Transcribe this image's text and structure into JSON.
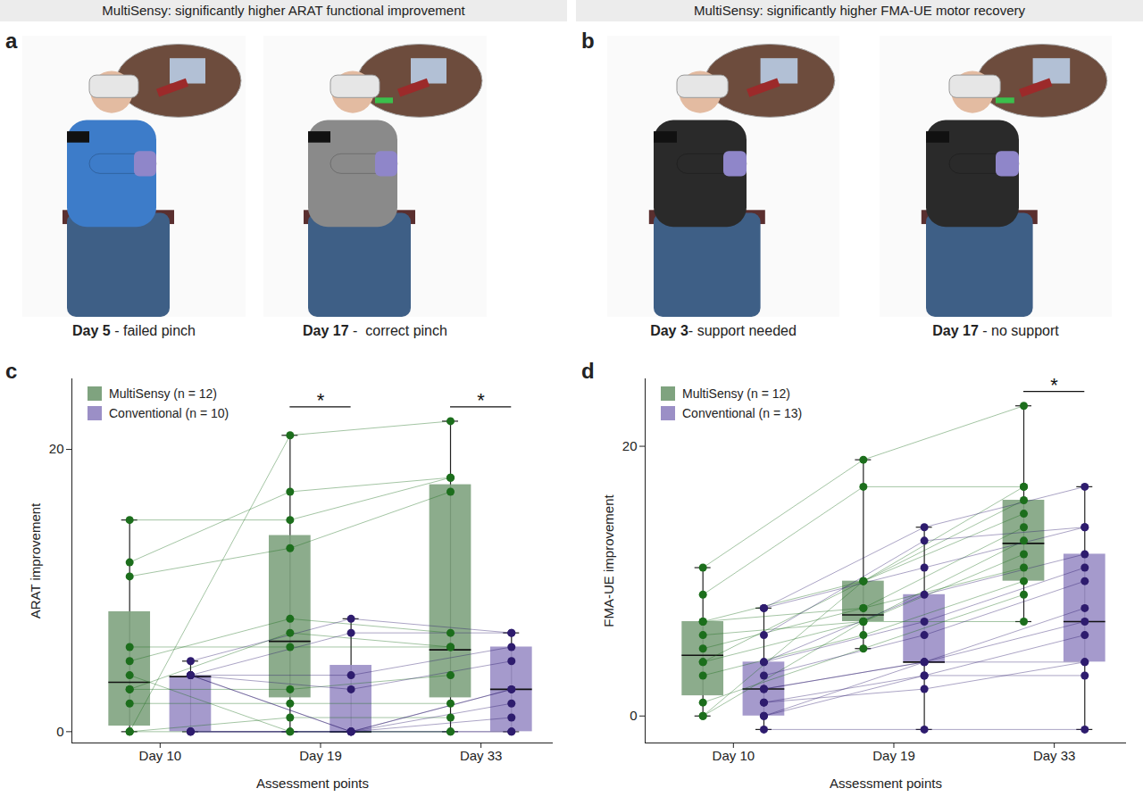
{
  "headers": [
    "MultiSensy: significantly higher ARAT functional improvement",
    "MultiSensy: significantly higher FMA-UE motor recovery"
  ],
  "photo_panels": [
    {
      "panel": "a",
      "frames": [
        {
          "day": "Day 5",
          "text": " - failed pinch"
        },
        {
          "day": "Day 17",
          "text": " -  correct pinch"
        }
      ]
    },
    {
      "panel": "b",
      "frames": [
        {
          "day": "Day 3",
          "text": "- support needed"
        },
        {
          "day": "Day 17",
          "text": " - no support"
        }
      ]
    }
  ],
  "chart_data": [
    {
      "type": "box",
      "panel": "c",
      "x_label": "Assessment points",
      "y_label": "ARAT improvement",
      "categories": [
        "Day 10",
        "Day 19",
        "Day 33"
      ],
      "ylim": [
        -0.8,
        25
      ],
      "yticks": [
        0,
        20
      ],
      "legend": "top-left",
      "series": [
        {
          "name": "MultiSensy (n = 12)",
          "color": "#7fa37f",
          "marker": "circle",
          "subjects": [
            [
              15,
              15,
              18
            ],
            [
              12,
              17,
              18
            ],
            [
              11,
              13,
              17
            ],
            [
              6,
              6,
              6
            ],
            [
              5,
              8,
              7
            ],
            [
              3,
              7,
              6
            ],
            [
              3,
              3,
              4
            ],
            [
              2,
              2,
              2
            ],
            [
              0,
              21,
              22
            ],
            [
              0,
              1,
              1
            ],
            [
              0,
              0,
              0
            ],
            [
              4,
              0,
              0
            ]
          ],
          "boxes": [
            {
              "low": 0,
              "q1": 0.4,
              "median": 3.5,
              "q3": 8.5,
              "high": 15
            },
            {
              "low": 0,
              "q1": 2.4,
              "median": 6.4,
              "q3": 13.9,
              "high": 21
            },
            {
              "low": 0,
              "q1": 2.4,
              "median": 5.8,
              "q3": 17.5,
              "high": 22
            }
          ]
        },
        {
          "name": "Conventional (n = 10)",
          "color": "#9b8fc6",
          "marker": "circle",
          "subjects": [
            [
              5,
              8,
              7
            ],
            [
              4,
              7,
              7
            ],
            [
              4,
              4,
              6
            ],
            [
              4,
              3,
              5
            ],
            [
              4,
              0,
              3
            ],
            [
              4,
              0,
              3
            ],
            [
              0,
              0,
              2
            ],
            [
              0,
              0,
              1
            ],
            [
              0,
              0,
              0
            ],
            [
              0,
              0,
              0
            ]
          ],
          "boxes": [
            {
              "low": 0,
              "q1": 0,
              "median": 3.9,
              "q3": 3.9,
              "high": 5
            },
            {
              "low": 0,
              "q1": 0,
              "median": 0,
              "q3": 4.7,
              "high": 8
            },
            {
              "low": 0,
              "q1": 0,
              "median": 3,
              "q3": 6,
              "high": 7
            }
          ]
        }
      ],
      "significance": [
        {
          "category": "Day 19",
          "label": "*"
        },
        {
          "category": "Day 33",
          "label": "*"
        }
      ]
    },
    {
      "type": "box",
      "panel": "d",
      "x_label": "Assessment points",
      "y_label": "FMA-UE improvement",
      "categories": [
        "Day 10",
        "Day 19",
        "Day 33"
      ],
      "ylim": [
        -2,
        25
      ],
      "yticks": [
        0,
        20
      ],
      "legend": "top-left",
      "series": [
        {
          "name": "MultiSensy (n = 12)",
          "color": "#7fa37f",
          "marker": "circle",
          "subjects": [
            [
              11,
              19,
              23
            ],
            [
              9,
              17,
              17
            ],
            [
              7,
              10,
              15
            ],
            [
              7,
              8,
              14
            ],
            [
              6,
              7,
              12
            ],
            [
              5,
              8,
              11
            ],
            [
              4,
              7,
              13
            ],
            [
              4,
              10,
              16
            ],
            [
              3,
              6,
              10
            ],
            [
              1,
              5,
              9
            ],
            [
              0,
              7,
              7
            ],
            [
              0,
              10,
              17
            ]
          ],
          "boxes": [
            {
              "low": 0,
              "q1": 1.5,
              "median": 4.5,
              "q3": 7,
              "high": 11
            },
            {
              "low": 5,
              "q1": 7,
              "median": 7.5,
              "q3": 10,
              "high": 19
            },
            {
              "low": 7,
              "q1": 10,
              "median": 12.8,
              "q3": 16,
              "high": 23
            }
          ]
        },
        {
          "name": "Conventional (n = 13)",
          "color": "#9b8fc6",
          "marker": "circle",
          "subjects": [
            [
              8,
              11,
              14
            ],
            [
              8,
              14,
              17
            ],
            [
              6,
              13,
              14
            ],
            [
              4,
              9,
              12
            ],
            [
              4,
              7,
              11
            ],
            [
              3,
              6,
              10
            ],
            [
              2,
              4,
              8
            ],
            [
              2,
              4,
              7
            ],
            [
              1,
              3,
              6
            ],
            [
              1,
              2,
              4
            ],
            [
              0,
              4,
              4
            ],
            [
              0,
              3,
              3
            ],
            [
              -1,
              -1,
              -1
            ]
          ],
          "boxes": [
            {
              "low": -1,
              "q1": 0,
              "median": 2,
              "q3": 4,
              "high": 8
            },
            {
              "low": -1,
              "q1": 4,
              "median": 4,
              "q3": 9,
              "high": 14
            },
            {
              "low": -1,
              "q1": 4,
              "median": 7,
              "q3": 12,
              "high": 17
            }
          ]
        }
      ],
      "significance": [
        {
          "category": "Day 33",
          "label": "*"
        }
      ]
    }
  ]
}
